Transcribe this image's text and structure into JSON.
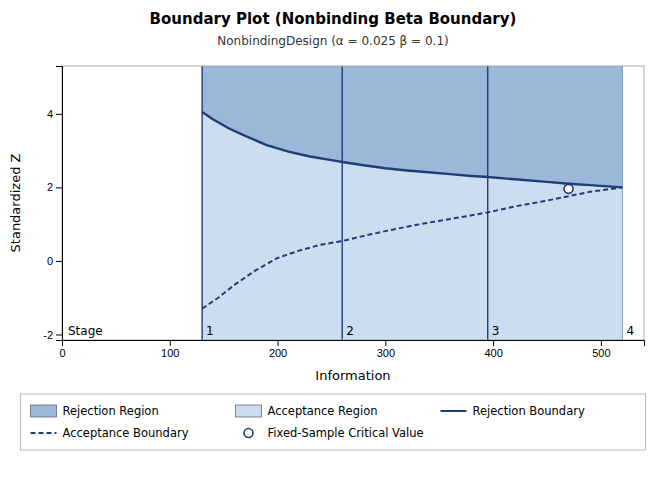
{
  "chart_data": {
    "type": "line",
    "title": "Boundary Plot (Nonbinding Beta Boundary)",
    "subtitle": "NonbindingDesign (α = 0.025  β = 0.1)",
    "xlabel": "Information",
    "ylabel": "Standardized Z",
    "xlim": [
      0,
      540
    ],
    "ylim": [
      -2.15,
      5.3
    ],
    "xticks": [
      0,
      100,
      200,
      300,
      400,
      500
    ],
    "yticks": [
      -2,
      0,
      2,
      4
    ],
    "grid": false,
    "legend": "bottom",
    "stages": {
      "title": "Stage",
      "x": [
        130,
        260,
        395,
        520
      ],
      "labels": [
        "1",
        "2",
        "3",
        "4"
      ],
      "colors": [
        "#1f3d7a",
        "#1f3d7a",
        "#1f3d7a",
        "#8899bb"
      ]
    },
    "series": [
      {
        "name": "Rejection Region",
        "type": "area_above",
        "color": "#9ab8d8",
        "x": [
          130,
          140,
          155,
          170,
          190,
          210,
          230,
          250,
          260,
          280,
          300,
          320,
          340,
          360,
          380,
          395,
          420,
          450,
          470,
          490,
          520
        ],
        "values": [
          4.05,
          3.85,
          3.6,
          3.4,
          3.15,
          2.97,
          2.84,
          2.74,
          2.69,
          2.6,
          2.52,
          2.46,
          2.41,
          2.36,
          2.31,
          2.28,
          2.22,
          2.15,
          2.1,
          2.06,
          2.0
        ]
      },
      {
        "name": "Acceptance Region",
        "type": "area",
        "color": "#ccddf0",
        "x": [
          130,
          140,
          155,
          170,
          190,
          210,
          230,
          250,
          260,
          280,
          300,
          320,
          340,
          360,
          380,
          395,
          420,
          450,
          470,
          490,
          520
        ],
        "values": [
          4.05,
          3.85,
          3.6,
          3.4,
          3.15,
          2.97,
          2.84,
          2.74,
          2.69,
          2.6,
          2.52,
          2.46,
          2.41,
          2.36,
          2.31,
          2.28,
          2.22,
          2.15,
          2.1,
          2.06,
          2.0
        ]
      },
      {
        "name": "Rejection Boundary",
        "type": "line",
        "line_style": "solid",
        "color": "#1f3d7a",
        "x": [
          130,
          140,
          155,
          170,
          190,
          210,
          230,
          250,
          260,
          280,
          300,
          320,
          340,
          360,
          380,
          395,
          420,
          450,
          470,
          490,
          520
        ],
        "values": [
          4.05,
          3.85,
          3.6,
          3.4,
          3.15,
          2.97,
          2.84,
          2.74,
          2.69,
          2.6,
          2.52,
          2.46,
          2.41,
          2.36,
          2.31,
          2.28,
          2.22,
          2.15,
          2.1,
          2.06,
          2.0
        ]
      },
      {
        "name": "Acceptance Boundary",
        "type": "line",
        "line_style": "dashed",
        "color": "#1f3d7a",
        "x": [
          130,
          145,
          160,
          180,
          200,
          220,
          240,
          260,
          280,
          300,
          320,
          340,
          360,
          380,
          395,
          420,
          450,
          470,
          490,
          520
        ],
        "values": [
          -1.3,
          -1.0,
          -0.65,
          -0.25,
          0.08,
          0.28,
          0.44,
          0.54,
          0.68,
          0.81,
          0.93,
          1.04,
          1.14,
          1.24,
          1.32,
          1.48,
          1.64,
          1.76,
          1.88,
          2.0
        ]
      },
      {
        "name": "Fixed-Sample Critical Value",
        "type": "scatter",
        "marker": "circle",
        "color": "#1f3d7a",
        "x": [
          470
        ],
        "values": [
          1.96
        ]
      }
    ]
  }
}
